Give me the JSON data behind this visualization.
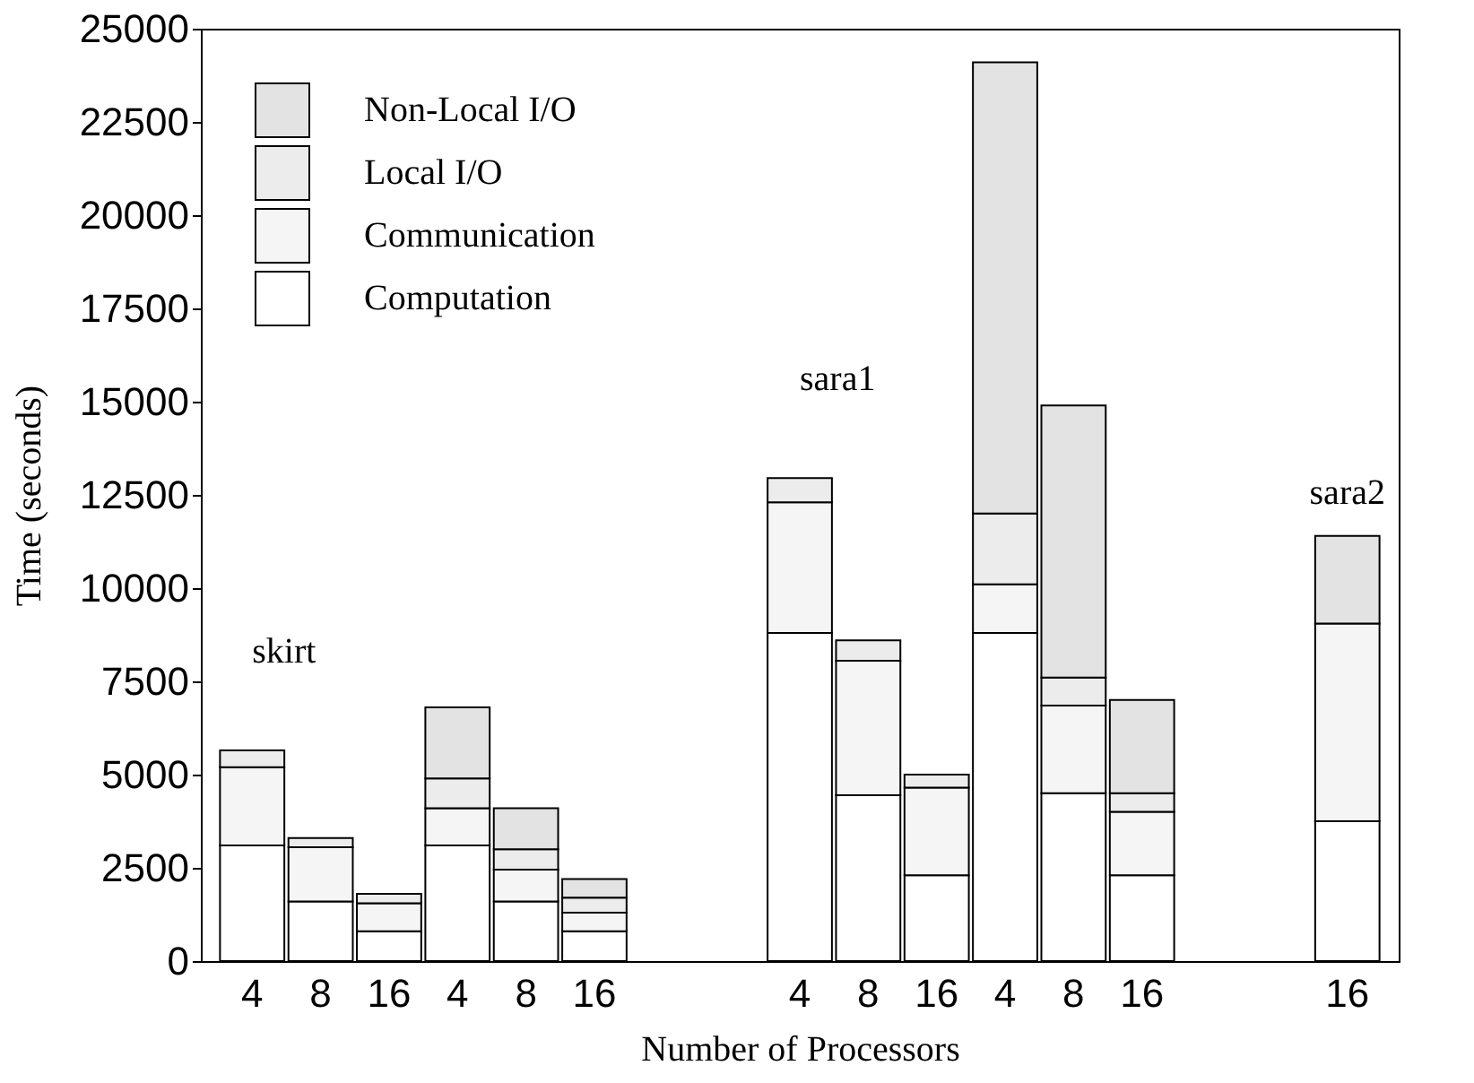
{
  "chart_data": {
    "type": "bar",
    "stacked": true,
    "xlabel": "Number of Processors",
    "ylabel": "Time (seconds)",
    "categories": [
      "4",
      "8",
      "16",
      "4",
      "8",
      "16",
      null,
      null,
      "4",
      "8",
      "16",
      "4",
      "8",
      "16",
      null,
      null,
      "16"
    ],
    "series": [
      {
        "name": "Computation",
        "color": "#ffffff",
        "values": [
          3100,
          1600,
          800,
          3100,
          1600,
          800,
          null,
          null,
          8800,
          4450,
          2300,
          8800,
          4500,
          2300,
          null,
          null,
          3750
        ]
      },
      {
        "name": "Communication",
        "color": "#f5f5f5",
        "values": [
          2100,
          1450,
          750,
          1000,
          850,
          500,
          null,
          null,
          3500,
          3600,
          2350,
          1300,
          2350,
          1700,
          null,
          null,
          5300
        ]
      },
      {
        "name": "Local I/O",
        "color": "#ececec",
        "values": [
          450,
          250,
          250,
          800,
          550,
          400,
          null,
          null,
          650,
          550,
          350,
          1900,
          750,
          500,
          null,
          null,
          null
        ]
      },
      {
        "name": "Non-Local I/O",
        "color": "#e3e3e3",
        "values": [
          null,
          null,
          null,
          1900,
          1100,
          500,
          null,
          null,
          null,
          null,
          null,
          12100,
          7300,
          2500,
          null,
          null,
          2350
        ]
      }
    ],
    "ylim": [
      0,
      25000
    ],
    "yticks": [
      0,
      2500,
      5000,
      7500,
      10000,
      12500,
      15000,
      17500,
      20000,
      22500,
      25000
    ],
    "annotations": [
      "skirt",
      "sara1",
      "sara2"
    ],
    "legend": "top left"
  }
}
